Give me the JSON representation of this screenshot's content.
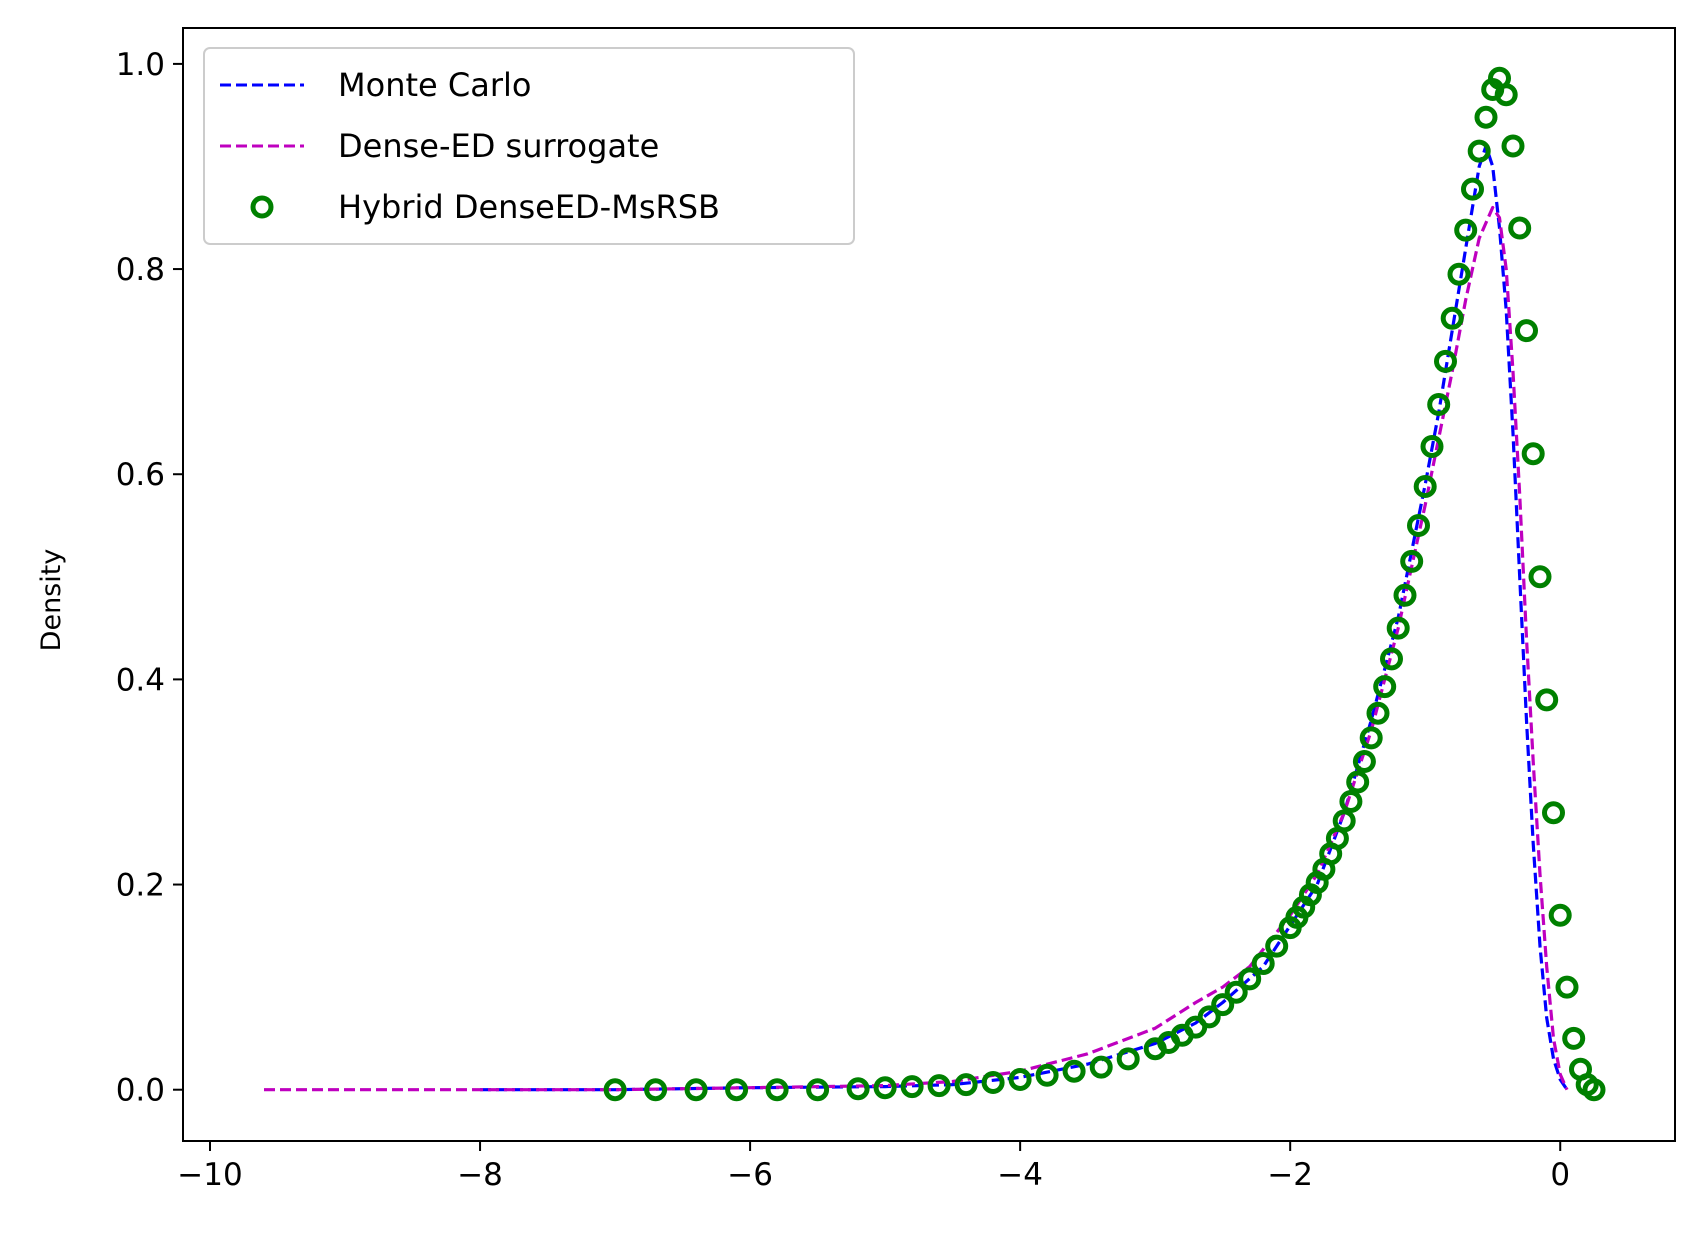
{
  "chart_data": {
    "type": "line",
    "title": "",
    "xlabel": "",
    "ylabel": "Density",
    "xlim": [
      -10.2,
      0.85
    ],
    "ylim": [
      -0.05,
      1.035
    ],
    "x_ticks": [
      -10,
      -8,
      -6,
      -4,
      -2,
      0
    ],
    "x_tick_labels": [
      "−10",
      "−8",
      "−6",
      "−4",
      "−2",
      "0"
    ],
    "y_ticks": [
      0.0,
      0.2,
      0.4,
      0.6,
      0.8,
      1.0
    ],
    "y_tick_labels": [
      "0.0",
      "0.2",
      "0.4",
      "0.6",
      "0.8",
      "1.0"
    ],
    "grid": false,
    "legend_position": "top-left",
    "series": [
      {
        "name": "Monte Carlo",
        "style": "dashed-line",
        "color": "#0000ff",
        "x": [
          -8.0,
          -7.0,
          -6.0,
          -5.0,
          -4.5,
          -4.0,
          -3.5,
          -3.0,
          -2.7,
          -2.5,
          -2.2,
          -2.0,
          -1.8,
          -1.6,
          -1.4,
          -1.2,
          -1.0,
          -0.9,
          -0.8,
          -0.7,
          -0.6,
          -0.55,
          -0.5,
          -0.45,
          -0.4,
          -0.35,
          -0.3,
          -0.25,
          -0.2,
          -0.15,
          -0.1,
          -0.05,
          0.0,
          0.05
        ],
        "y": [
          0.0,
          0.0,
          0.002,
          0.003,
          0.005,
          0.012,
          0.025,
          0.045,
          0.065,
          0.085,
          0.12,
          0.16,
          0.2,
          0.27,
          0.36,
          0.46,
          0.59,
          0.66,
          0.74,
          0.82,
          0.9,
          0.92,
          0.9,
          0.84,
          0.76,
          0.64,
          0.5,
          0.36,
          0.24,
          0.14,
          0.07,
          0.03,
          0.01,
          0.0
        ]
      },
      {
        "name": "Dense-ED surrogate",
        "style": "dashed-line",
        "color": "#bf00bf",
        "x": [
          -9.6,
          -8.0,
          -7.0,
          -6.0,
          -5.0,
          -4.5,
          -4.0,
          -3.5,
          -3.0,
          -2.7,
          -2.5,
          -2.3,
          -2.0,
          -1.8,
          -1.6,
          -1.4,
          -1.2,
          -1.0,
          -0.8,
          -0.7,
          -0.6,
          -0.5,
          -0.45,
          -0.4,
          -0.35,
          -0.3,
          -0.25,
          -0.2,
          -0.15,
          -0.1,
          -0.05,
          0.0,
          0.05
        ],
        "y": [
          0.0,
          0.0,
          0.0,
          0.002,
          0.004,
          0.008,
          0.018,
          0.035,
          0.06,
          0.085,
          0.1,
          0.12,
          0.17,
          0.21,
          0.27,
          0.35,
          0.45,
          0.57,
          0.7,
          0.77,
          0.83,
          0.86,
          0.85,
          0.8,
          0.7,
          0.58,
          0.44,
          0.32,
          0.21,
          0.12,
          0.05,
          0.015,
          0.0
        ]
      },
      {
        "name": "Hybrid DenseED-MsRSB",
        "style": "open-circle",
        "color": "#008000",
        "x": [
          -7.0,
          -6.7,
          -6.4,
          -6.1,
          -5.8,
          -5.5,
          -5.2,
          -5.0,
          -4.8,
          -4.6,
          -4.4,
          -4.2,
          -4.0,
          -3.8,
          -3.6,
          -3.4,
          -3.2,
          -3.0,
          -2.9,
          -2.8,
          -2.7,
          -2.6,
          -2.5,
          -2.4,
          -2.3,
          -2.2,
          -2.1,
          -2.0,
          -1.95,
          -1.9,
          -1.85,
          -1.8,
          -1.75,
          -1.7,
          -1.65,
          -1.6,
          -1.55,
          -1.5,
          -1.45,
          -1.4,
          -1.35,
          -1.3,
          -1.25,
          -1.2,
          -1.15,
          -1.1,
          -1.05,
          -1.0,
          -0.95,
          -0.9,
          -0.85,
          -0.8,
          -0.75,
          -0.7,
          -0.65,
          -0.6,
          -0.55,
          -0.5,
          -0.45,
          -0.4,
          -0.35,
          -0.3,
          -0.25,
          -0.2,
          -0.15,
          -0.1,
          -0.05,
          0.0,
          0.05,
          0.1,
          0.15,
          0.2,
          0.25
        ],
        "y": [
          0.0,
          0.0,
          0.0,
          0.0,
          0.0,
          0.0,
          0.001,
          0.002,
          0.003,
          0.004,
          0.005,
          0.007,
          0.01,
          0.014,
          0.018,
          0.022,
          0.03,
          0.04,
          0.046,
          0.053,
          0.061,
          0.071,
          0.083,
          0.095,
          0.108,
          0.123,
          0.14,
          0.158,
          0.168,
          0.178,
          0.19,
          0.202,
          0.215,
          0.23,
          0.245,
          0.262,
          0.281,
          0.3,
          0.32,
          0.343,
          0.367,
          0.393,
          0.42,
          0.45,
          0.482,
          0.515,
          0.55,
          0.588,
          0.627,
          0.668,
          0.71,
          0.752,
          0.795,
          0.838,
          0.878,
          0.915,
          0.948,
          0.975,
          0.986,
          0.97,
          0.92,
          0.84,
          0.74,
          0.62,
          0.5,
          0.38,
          0.27,
          0.17,
          0.1,
          0.05,
          0.02,
          0.005,
          0.0
        ]
      }
    ]
  }
}
